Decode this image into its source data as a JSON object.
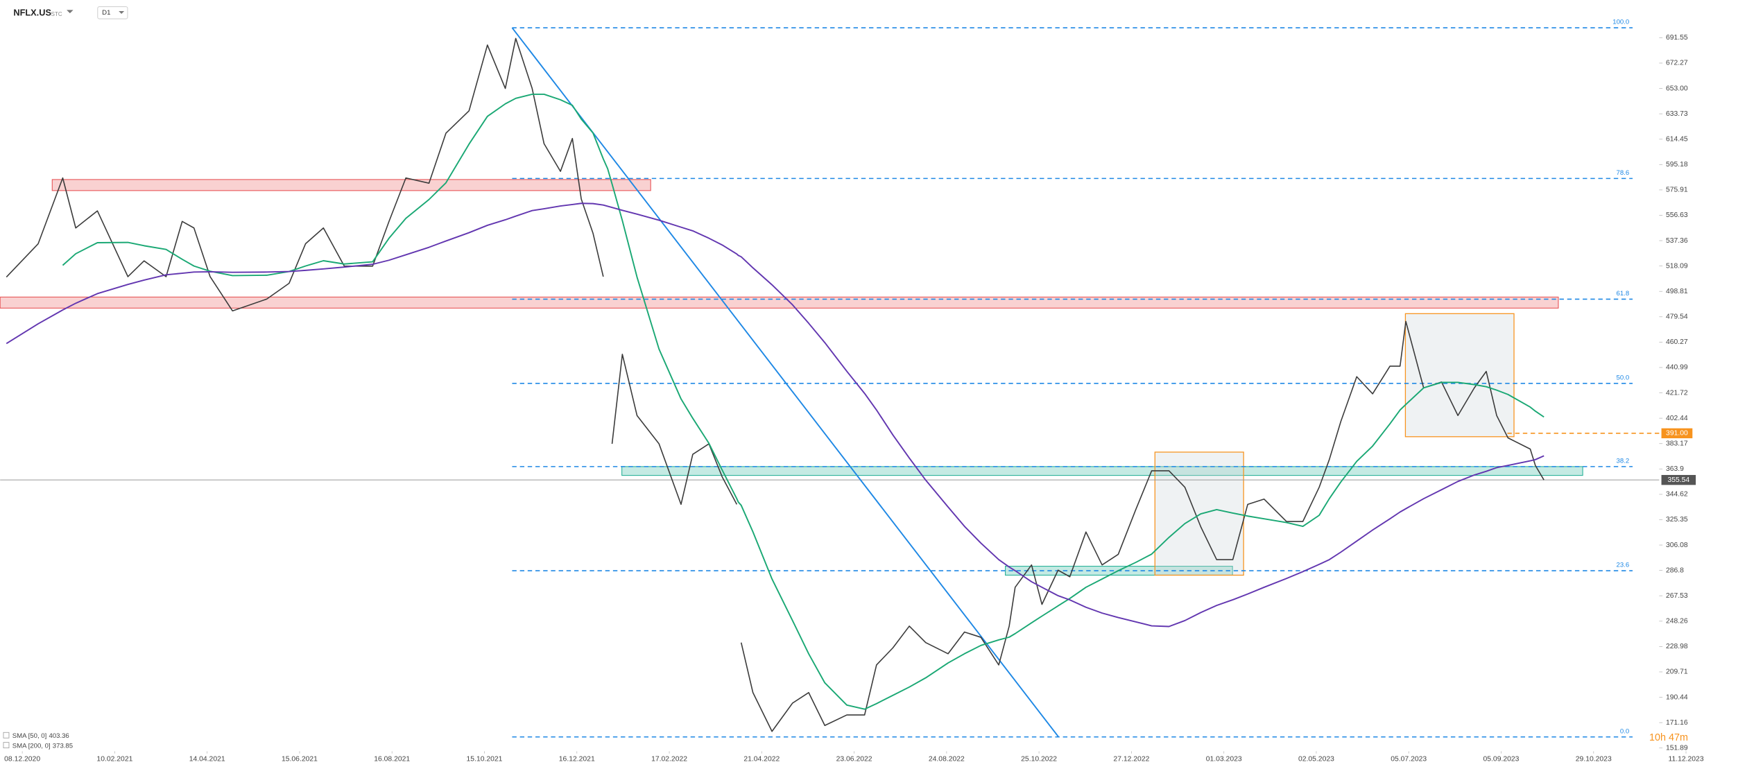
{
  "chart_data": {
    "type": "line",
    "symbol": "NFLX.US",
    "exchange": "STC",
    "interval": "D1",
    "countdown": "10h 47m",
    "x": [
      "27.11.2020",
      "19.12.2020",
      "05.01.2021",
      "14.01.2021",
      "29.01.2021",
      "19.02.2021",
      "02.03.2021",
      "17.03.2021",
      "28.03.2021",
      "05.04.2021",
      "16.04.2021",
      "01.05.2021",
      "24.05.2021",
      "08.06.2021",
      "19.06.2021",
      "01.07.2021",
      "15.07.2021",
      "03.08.2021",
      "14.08.2021",
      "25.08.2021",
      "09.09.2021",
      "20.09.2021",
      "05.10.2021",
      "17.10.2021",
      "29.10.2021",
      "05.11.2021",
      "16.11.2021",
      "24.11.2021",
      "05.12.2021",
      "13.12.2021",
      "19.12.2021",
      "27.12.2021",
      "03.01.2022",
      "06.01.2022",
      "09.01.2022",
      "16.01.2022",
      "26.01.2022",
      "10.02.2022",
      "25.02.2022",
      "05.03.2022",
      "16.03.2022",
      "25.03.2022",
      "04.04.2022",
      "05.04.2022",
      "07.04.2022",
      "15.04.2022",
      "28.04.2022",
      "12.05.2022",
      "23.05.2022",
      "03.06.2022",
      "18.06.2022",
      "30.06.2022",
      "08.07.2022",
      "19.07.2022",
      "30.07.2022",
      "10.08.2022",
      "25.08.2022",
      "05.09.2022",
      "16.09.2022",
      "28.09.2022",
      "05.10.2022",
      "09.10.2022",
      "20.10.2022",
      "27.10.2022",
      "07.11.2022",
      "15.11.2022",
      "26.11.2022",
      "07.12.2022",
      "18.12.2022",
      "30.12.2022",
      "10.01.2023",
      "22.01.2023",
      "02.02.2023",
      "13.02.2023",
      "24.02.2023",
      "07.03.2023",
      "17.03.2023",
      "28.03.2023",
      "12.04.2023",
      "23.04.2023",
      "04.05.2023",
      "11.05.2023",
      "19.05.2023",
      "30.05.2023",
      "10.06.2023",
      "22.06.2023",
      "29.06.2023",
      "03.07.2023",
      "15.07.2023",
      "27.07.2023",
      "07.08.2023",
      "18.08.2023",
      "26.08.2023",
      "02.09.2023",
      "09.09.2023",
      "22.09.2023",
      "25.09.2023",
      "30.09.2023"
    ],
    "series": [
      {
        "color": "#3b3b3b",
        "values": [
          509.7,
          535,
          585,
          547,
          560,
          510,
          522,
          510,
          552,
          547,
          510,
          484,
          493,
          505,
          535,
          547,
          518,
          518,
          552,
          585,
          581,
          619,
          636,
          686,
          653,
          691,
          653,
          611,
          590,
          615,
          569,
          543,
          510,
          null,
          383,
          451,
          404.5,
          383,
          337,
          375,
          383,
          358,
          337,
          null,
          232,
          194,
          164.5,
          186,
          194,
          169,
          177,
          177,
          215,
          228,
          244.5,
          232,
          223.5,
          240,
          236,
          215,
          244.5,
          274,
          291,
          261,
          287,
          282,
          316,
          291,
          299,
          333,
          362.5,
          362.5,
          350,
          320,
          295,
          295,
          337,
          341,
          324,
          324,
          350,
          371,
          400,
          434,
          421,
          442,
          442,
          476,
          425.5,
          430,
          404.5,
          425.5,
          438,
          404.5,
          387.5,
          379,
          366.5,
          355.54
        ]
      },
      {
        "name": "SMA [50, 0]",
        "color": "#1aa874",
        "values": [
          null,
          null,
          518.6,
          527.4,
          535.8,
          536.0,
          533.5,
          530.7,
          523.2,
          518.1,
          514.1,
          510.8,
          511.1,
          513.9,
          518.1,
          522.1,
          519.6,
          521.3,
          539.2,
          554.3,
          568.6,
          581.3,
          610.7,
          631.8,
          641.3,
          645.5,
          648.6,
          648.6,
          644.4,
          640.2,
          629.7,
          619.2,
          599.5,
          592.0,
          580.4,
          552.6,
          509.7,
          455.0,
          417.1,
          402.4,
          383.4,
          363.2,
          341.3,
          338.8,
          336.3,
          316.1,
          280.3,
          248.7,
          223.5,
          201.4,
          184.5,
          181.4,
          185.6,
          191.9,
          198.2,
          205.2,
          216.5,
          223.5,
          229.8,
          234.0,
          236.1,
          238.8,
          247.0,
          252.1,
          259.9,
          265.5,
          274.0,
          280.3,
          286.6,
          292.9,
          299.2,
          311.9,
          322.4,
          329.8,
          333.0,
          330.4,
          328.1,
          326.0,
          323.2,
          320.3,
          328.7,
          341.3,
          354.0,
          369.7,
          381.3,
          398.2,
          408.7,
          412.9,
          425.5,
          429.7,
          429.7,
          428.0,
          426.4,
          423.8,
          420.5,
          410.9,
          407.8,
          403.36
        ]
      },
      {
        "name": "SMA [200, 0]",
        "color": "#6236b0",
        "values": [
          459.2,
          474.2,
          484.7,
          489.8,
          497.1,
          504.1,
          507.4,
          511.4,
          512.6,
          513.5,
          513.7,
          513.3,
          513.5,
          513.9,
          514.8,
          515.9,
          517.3,
          519.4,
          522.5,
          526.6,
          532.3,
          537.1,
          543.4,
          549.0,
          553.2,
          556.0,
          560.2,
          561.6,
          563.7,
          564.8,
          565.7,
          565.5,
          564.4,
          563.5,
          562.6,
          560.4,
          557.5,
          552.9,
          547.6,
          544.8,
          539.2,
          534.1,
          527.2,
          526.2,
          525.1,
          516.7,
          503.8,
          488.6,
          474.6,
          459.9,
          438.1,
          421.3,
          408.7,
          389.7,
          372.2,
          355.4,
          335.0,
          320.3,
          307.6,
          295.0,
          289.4,
          286.6,
          278.2,
          274.0,
          267.6,
          264.4,
          258.8,
          254.4,
          251.0,
          247.7,
          244.7,
          244.2,
          248.7,
          254.8,
          260.2,
          264.5,
          268.9,
          274.0,
          280.7,
          285.9,
          291.4,
          295.0,
          300.7,
          309.1,
          317.5,
          326.0,
          331.2,
          333.7,
          341.3,
          348.1,
          354.4,
          359.3,
          362.1,
          364.9,
          366.6,
          370.1,
          371.0,
          373.85
        ]
      }
    ],
    "xticks": [
      "08.12.2020",
      "10.02.2021",
      "14.04.2021",
      "15.06.2021",
      "16.08.2021",
      "15.10.2021",
      "16.12.2021",
      "17.02.2022",
      "21.04.2022",
      "23.06.2022",
      "24.08.2022",
      "25.10.2022",
      "27.12.2022",
      "01.03.2023",
      "02.05.2023",
      "05.07.2023",
      "05.09.2023",
      "29.10.2023",
      "11.12.2023"
    ],
    "ylim": [
      149.4,
      720.2
    ],
    "yticks": [
      691.55,
      672.27,
      {
        "value": 653,
        "label": "653.00"
      },
      633.73,
      614.45,
      595.18,
      575.91,
      556.63,
      537.36,
      518.09,
      498.81,
      479.54,
      460.27,
      440.99,
      421.72,
      402.44,
      383.17,
      363.9,
      344.62,
      325.35,
      306.08,
      286.8,
      267.53,
      248.26,
      228.98,
      209.71,
      190.44,
      171.16,
      151.89
    ],
    "grid": false,
    "fib_color": "#1e88e5",
    "fib_levels": [
      {
        "label": "100.0",
        "value": 699.1
      },
      {
        "label": "78.6",
        "value": 584.6
      },
      {
        "label": "61.8",
        "value": 492.9
      },
      {
        "label": "50.0",
        "value": 428.9
      },
      {
        "label": "38.2",
        "value": 365.7
      },
      {
        "label": "23.6",
        "value": 286.6
      },
      {
        "label": "0.0",
        "value": 160.3
      }
    ],
    "trendline": {
      "from": 699.1,
      "to": 160.3,
      "color": "#1e88e5"
    },
    "zones": [
      {
        "low": 575.4,
        "high": 583.8,
        "color": "#e8585a"
      },
      {
        "low": 486.1,
        "high": 494.5,
        "color": "#e8585a"
      },
      {
        "low": 359.0,
        "high": 365.7,
        "color": "#2bb39a"
      },
      {
        "low": 283.2,
        "high": 290.0,
        "color": "#2bb39a"
      }
    ],
    "boxes": [
      {
        "low": 283.2,
        "high": 376.7,
        "color": "#f7931e"
      },
      {
        "low": 388.4,
        "high": 481.9,
        "color": "#f7931e"
      }
    ],
    "levels": [
      {
        "value": 391,
        "label": "391.00",
        "color": "#f7931e"
      }
    ]
  }
}
